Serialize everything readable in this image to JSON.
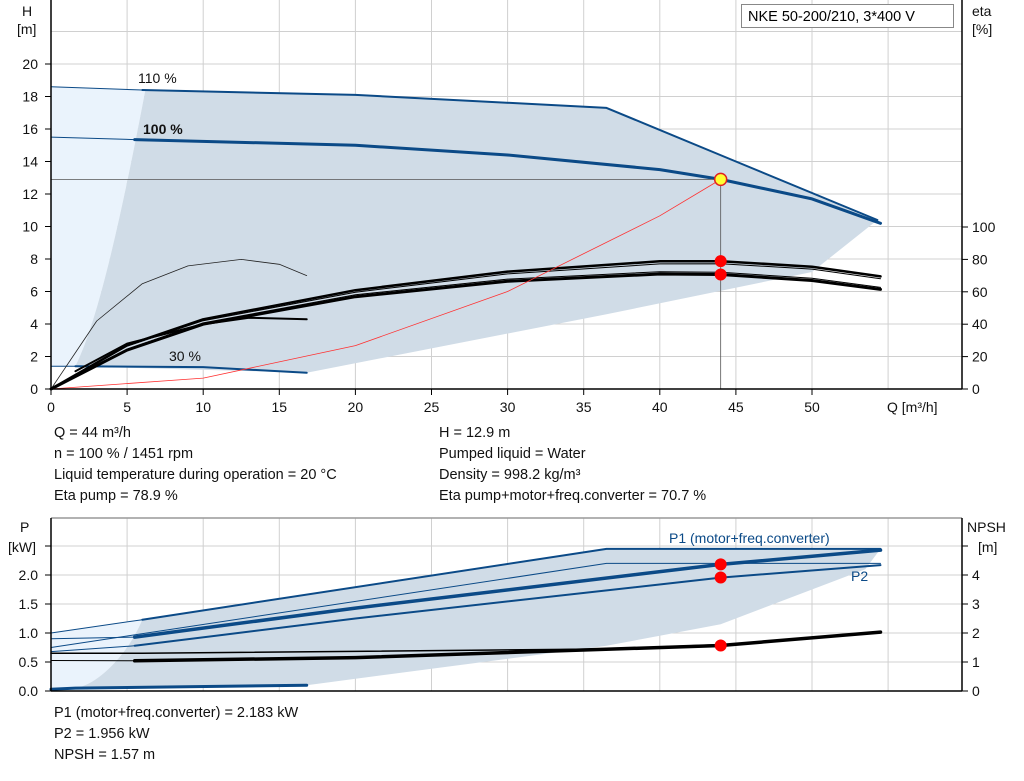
{
  "title_box": "NKE 50-200/210, 3*400 V",
  "colors": {
    "curve": "#0b4a87",
    "region": "#d0dce7",
    "region_light": "#eaf3fc",
    "op_point": "#ff0000",
    "system": "#ff3030",
    "grid": "#d0d0d0"
  },
  "chart_data": [
    {
      "type": "line",
      "name_top": "head-eta",
      "ylabel": "H",
      "yunit": "[m]",
      "ylabel2": "eta",
      "yunit2": "[%]",
      "xlabel": "Q [m³/h]",
      "xlim": [
        0,
        60
      ],
      "ylim": [
        0,
        22
      ],
      "y2lim": [
        0,
        100
      ],
      "grid": true,
      "xticks": [
        "0",
        "5",
        "10",
        "15",
        "20",
        "25",
        "30",
        "35",
        "40",
        "45",
        "50"
      ],
      "yticks": [
        "0",
        "2",
        "4",
        "6",
        "8",
        "10",
        "12",
        "14",
        "16",
        "18",
        "20"
      ],
      "y2ticks": [
        "0",
        "20",
        "40",
        "60",
        "80",
        "100"
      ],
      "speed_labels": [
        "110 %",
        "100 %",
        "30 %"
      ],
      "series": {
        "h110": [
          [
            0,
            18.6
          ],
          [
            6,
            18.4
          ],
          [
            20,
            18.1
          ],
          [
            36.5,
            17.3
          ],
          [
            45,
            14
          ],
          [
            54.3,
            10.4
          ]
        ],
        "h100": [
          [
            0,
            15.5
          ],
          [
            5.5,
            15.35
          ],
          [
            20,
            15
          ],
          [
            30,
            14.4
          ],
          [
            40,
            13.5
          ],
          [
            44,
            12.9
          ],
          [
            50,
            11.7
          ],
          [
            54.5,
            10.2
          ]
        ],
        "h30": [
          [
            0,
            1.4
          ],
          [
            1.6,
            1.4
          ],
          [
            10,
            1.35
          ],
          [
            16.8,
            1.0
          ]
        ],
        "eta_pump_100": [
          [
            0,
            0
          ],
          [
            5,
            27
          ],
          [
            10,
            43
          ],
          [
            20,
            61
          ],
          [
            30,
            72.5
          ],
          [
            40,
            78.8
          ],
          [
            44,
            78.9
          ],
          [
            50,
            75.5
          ],
          [
            54.5,
            69.5
          ]
        ],
        "eta_total_100": [
          [
            0,
            0
          ],
          [
            5,
            24
          ],
          [
            10,
            40
          ],
          [
            20,
            57
          ],
          [
            30,
            66.5
          ],
          [
            40,
            71
          ],
          [
            44,
            70.7
          ],
          [
            50,
            67
          ],
          [
            54.5,
            61.5
          ]
        ],
        "eta_30": [
          [
            0,
            0
          ],
          [
            3,
            42
          ],
          [
            6,
            65
          ],
          [
            9,
            76
          ],
          [
            12.5,
            80
          ],
          [
            15,
            77
          ],
          [
            16.8,
            70
          ]
        ],
        "eta_30_total": [
          [
            1.6,
            11
          ],
          [
            5,
            28
          ],
          [
            10,
            40
          ],
          [
            13,
            44
          ],
          [
            16.8,
            43
          ]
        ],
        "system_curve": [
          [
            0,
            0
          ],
          [
            10,
            0.67
          ],
          [
            20,
            2.67
          ],
          [
            30,
            6.0
          ],
          [
            40,
            10.66
          ],
          [
            44,
            12.9
          ]
        ]
      },
      "operating_point": {
        "Q": 44,
        "H": 12.9,
        "eta_pump": 78.9,
        "eta_total": 70.7
      }
    },
    {
      "type": "line",
      "name_bottom": "power-npsh",
      "ylabel": "P",
      "yunit": "[kW]",
      "ylabel2": "NPSH",
      "yunit2": "[m]",
      "ylim": [
        0,
        3
      ],
      "y2lim": [
        0,
        6
      ],
      "yticks": [
        "0.0",
        "0.5",
        "1.0",
        "1.5",
        "2.0"
      ],
      "y2ticks": [
        "0",
        "1",
        "2",
        "3",
        "4"
      ],
      "series_labels": [
        "P1 (motor+freq.converter)",
        "P2"
      ],
      "series": {
        "p1_110": [
          [
            0,
            1.0
          ],
          [
            6,
            1.23
          ],
          [
            36.5,
            2.45
          ],
          [
            54.5,
            2.45
          ]
        ],
        "p1_100": [
          [
            0,
            0.9
          ],
          [
            5.5,
            0.93
          ],
          [
            20,
            1.43
          ],
          [
            44,
            2.183
          ],
          [
            54.5,
            2.43
          ]
        ],
        "p2_110": [
          [
            0,
            0.75
          ],
          [
            36.5,
            2.2
          ],
          [
            54.5,
            2.2
          ]
        ],
        "p2_100": [
          [
            0,
            0.68
          ],
          [
            5.5,
            0.78
          ],
          [
            20,
            1.25
          ],
          [
            44,
            1.956
          ],
          [
            54.5,
            2.17
          ]
        ],
        "p_30": [
          [
            0,
            0.03
          ],
          [
            1.6,
            0.05
          ],
          [
            16.8,
            0.1
          ]
        ],
        "npsh": [
          [
            0,
            1.05
          ],
          [
            5.5,
            1.04
          ],
          [
            20,
            1.15
          ],
          [
            44,
            1.57
          ],
          [
            54.5,
            2.03
          ]
        ],
        "npsh_110": [
          [
            0,
            1.3
          ],
          [
            6,
            1.3
          ],
          [
            36.5,
            1.45
          ],
          [
            44,
            1.6
          ]
        ]
      },
      "operating_point": {
        "Q": 44,
        "P1": 2.183,
        "P2": 1.956,
        "NPSH": 1.57
      }
    }
  ],
  "info_top_left": [
    "Q = 44 m³/h",
    "n = 100 % / 1451 rpm",
    "Liquid temperature during operation = 20 °C",
    "Eta pump = 78.9 %"
  ],
  "info_top_right": [
    "H = 12.9 m",
    "Pumped liquid = Water",
    "Density = 998.2 kg/m³",
    "Eta pump+motor+freq.converter = 70.7 %"
  ],
  "info_bottom": [
    "P1 (motor+freq.converter) = 2.183 kW",
    "P2 = 1.956 kW",
    "NPSH = 1.57 m"
  ]
}
